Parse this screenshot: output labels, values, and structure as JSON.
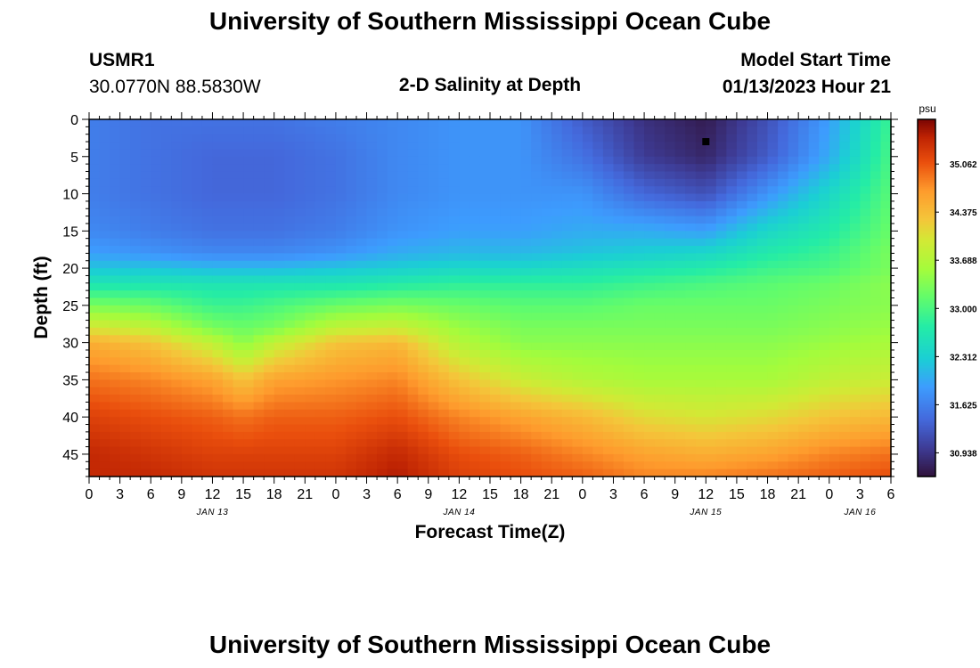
{
  "page": {
    "title": "University of Southern Mississippi Ocean Cube",
    "footer_title": "University of Southern Mississippi Ocean Cube",
    "station_id": "USMR1",
    "station_coords": "30.0770N  88.5830W",
    "plot_title": "2-D Salinity at Depth",
    "model_start_label": "Model Start Time",
    "model_start_value": "01/13/2023 Hour 21"
  },
  "chart_data": {
    "type": "heatmap",
    "title": "2-D Salinity at Depth",
    "xlabel": "Forecast Time(Z)",
    "ylabel": "Depth (ft)",
    "x_ticks": [
      "0",
      "3",
      "6",
      "9",
      "12",
      "15",
      "18",
      "21",
      "0",
      "3",
      "6",
      "9",
      "12",
      "15",
      "18",
      "21",
      "0",
      "3",
      "6",
      "9",
      "12",
      "15",
      "18",
      "21",
      "0",
      "3",
      "6"
    ],
    "x_hours": [
      0,
      3,
      6,
      9,
      12,
      15,
      18,
      21,
      24,
      27,
      30,
      33,
      36,
      39,
      42,
      45,
      48,
      51,
      54,
      57,
      60,
      63,
      66,
      69,
      72,
      75,
      78
    ],
    "date_labels": [
      {
        "label": "JAN 13",
        "hour": 12
      },
      {
        "label": "JAN 14",
        "hour": 36
      },
      {
        "label": "JAN 15",
        "hour": 60
      },
      {
        "label": "JAN 16",
        "hour": 75
      }
    ],
    "y_ticks": [
      0,
      5,
      10,
      15,
      20,
      25,
      30,
      35,
      40,
      45
    ],
    "xlim": [
      0,
      78
    ],
    "ylim": [
      0,
      48
    ],
    "units": "psu",
    "colorbar": {
      "label": "psu",
      "min": 30.6,
      "max": 35.7,
      "ticks": [
        "35.062",
        "34.375",
        "33.688",
        "33.000",
        "32.312",
        "31.625",
        "30.938"
      ]
    },
    "marker": {
      "hour": 60,
      "depth": 3
    },
    "profile_hours": [
      0,
      6,
      12,
      15,
      18,
      24,
      30,
      36,
      42,
      48,
      54,
      60,
      66,
      72,
      78
    ],
    "profile_depths": [
      0,
      5,
      10,
      15,
      18,
      20,
      22,
      25,
      28,
      30,
      35,
      40,
      45,
      48
    ],
    "salinity_profiles": [
      [
        31.6,
        31.6,
        31.6,
        31.7,
        31.9,
        32.2,
        32.6,
        33.3,
        34.0,
        34.5,
        34.9,
        35.2,
        35.4,
        35.4
      ],
      [
        31.5,
        31.5,
        31.5,
        31.6,
        31.8,
        32.2,
        32.6,
        33.2,
        33.8,
        34.3,
        34.8,
        35.1,
        35.3,
        35.4
      ],
      [
        31.5,
        31.4,
        31.4,
        31.5,
        31.7,
        32.1,
        32.6,
        32.9,
        33.3,
        33.8,
        34.6,
        35.0,
        35.2,
        35.3
      ],
      [
        31.5,
        31.4,
        31.4,
        31.5,
        31.7,
        32.1,
        32.6,
        32.9,
        33.2,
        33.4,
        34.3,
        34.9,
        35.2,
        35.3
      ],
      [
        31.5,
        31.4,
        31.4,
        31.5,
        31.7,
        32.1,
        32.6,
        33.0,
        33.3,
        33.8,
        34.6,
        35.0,
        35.2,
        35.3
      ],
      [
        31.6,
        31.5,
        31.5,
        31.6,
        31.8,
        32.2,
        32.6,
        33.2,
        33.8,
        34.3,
        34.7,
        35.0,
        35.2,
        35.3
      ],
      [
        31.7,
        31.7,
        31.7,
        31.8,
        32.0,
        32.3,
        32.7,
        33.3,
        33.9,
        34.4,
        34.8,
        35.1,
        35.4,
        35.5
      ],
      [
        31.8,
        31.8,
        31.8,
        31.9,
        32.1,
        32.4,
        32.8,
        33.2,
        33.5,
        33.7,
        34.3,
        34.8,
        35.1,
        35.2
      ],
      [
        31.8,
        31.8,
        31.8,
        31.9,
        32.1,
        32.4,
        32.8,
        33.1,
        33.3,
        33.4,
        33.9,
        34.6,
        35.0,
        35.1
      ],
      [
        31.3,
        31.5,
        31.8,
        32.0,
        32.2,
        32.5,
        32.8,
        33.1,
        33.3,
        33.4,
        33.7,
        34.4,
        34.8,
        35.0
      ],
      [
        30.9,
        31.0,
        31.4,
        32.0,
        32.3,
        32.6,
        32.9,
        33.2,
        33.3,
        33.4,
        33.6,
        34.1,
        34.6,
        34.8
      ],
      [
        30.7,
        30.8,
        31.2,
        31.9,
        32.4,
        32.7,
        33.0,
        33.2,
        33.3,
        33.4,
        33.6,
        34.0,
        34.5,
        34.8
      ],
      [
        31.2,
        31.3,
        31.8,
        32.4,
        32.7,
        32.9,
        33.1,
        33.2,
        33.3,
        33.4,
        33.6,
        34.1,
        34.6,
        34.9
      ],
      [
        31.9,
        32.0,
        32.4,
        32.7,
        32.9,
        33.0,
        33.2,
        33.3,
        33.4,
        33.5,
        33.8,
        34.3,
        34.8,
        35.0
      ],
      [
        32.9,
        33.0,
        33.1,
        33.2,
        33.3,
        33.3,
        33.4,
        33.4,
        33.5,
        33.6,
        33.9,
        34.4,
        34.9,
        35.1
      ]
    ]
  }
}
